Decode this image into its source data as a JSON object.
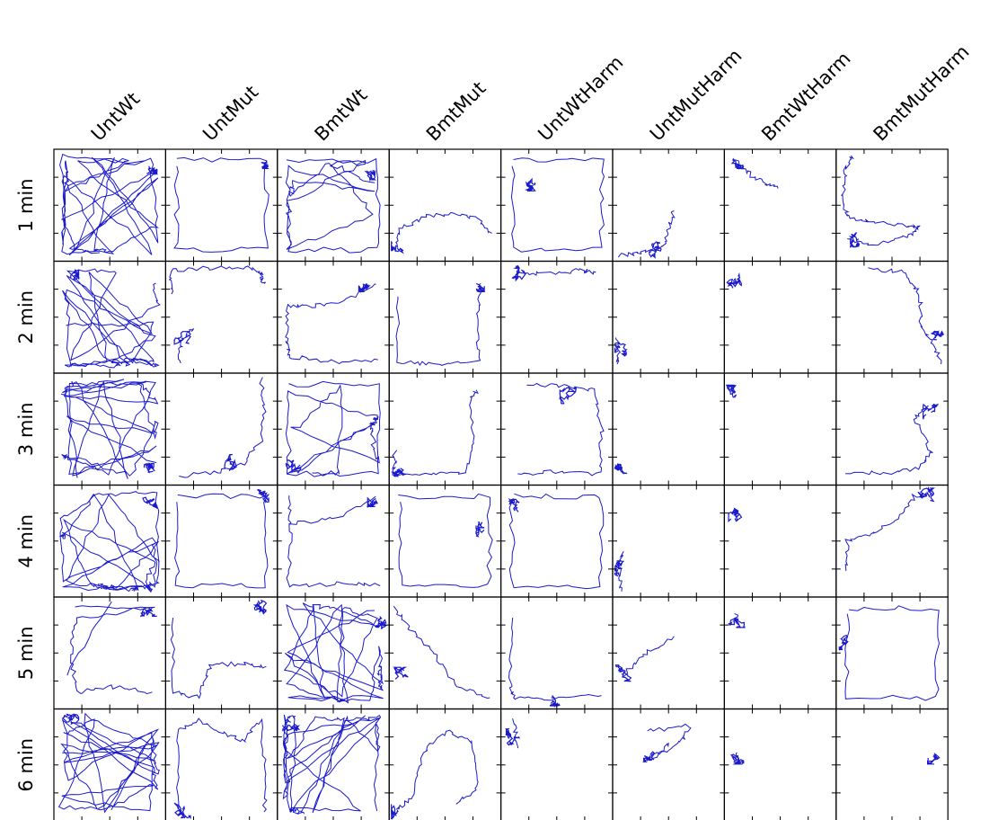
{
  "chart_data": {
    "type": "trajectory-grid",
    "columns": [
      "UntWt",
      "UntMut",
      "BmtWt",
      "BmtMut",
      "UntWtHarm",
      "UntMutHarm",
      "BmtWtHarm",
      "BmtMutHarm"
    ],
    "rows": [
      "1 min",
      "2 min",
      "3 min",
      "4 min",
      "5 min",
      "6 min"
    ],
    "trajectory_color": "#1a1acc",
    "frame_color": "#000000",
    "panels": [
      [
        {
          "pattern": "dense",
          "scatter": 0.48,
          "cluster": [
            0.85,
            0.15
          ]
        },
        {
          "pattern": "perimeter",
          "scatter": 0.12,
          "cluster": [
            0.9,
            0.1
          ]
        },
        {
          "pattern": "mixed",
          "scatter": 0.3,
          "cluster": [
            0.8,
            0.2
          ]
        },
        {
          "pattern": "path",
          "points": [
            [
              0.05,
              0.9
            ],
            [
              0.1,
              0.7
            ],
            [
              0.35,
              0.6
            ],
            [
              0.6,
              0.58
            ],
            [
              0.8,
              0.62
            ],
            [
              0.92,
              0.75
            ]
          ],
          "cluster": [
            0.07,
            0.88
          ]
        },
        {
          "pattern": "perimeter",
          "scatter": 0.1,
          "cluster": [
            0.3,
            0.3
          ]
        },
        {
          "pattern": "path",
          "points": [
            [
              0.05,
              0.95
            ],
            [
              0.25,
              0.92
            ],
            [
              0.45,
              0.88
            ],
            [
              0.5,
              0.7
            ],
            [
              0.55,
              0.55
            ]
          ],
          "cluster": [
            0.4,
            0.9
          ]
        },
        {
          "pattern": "path",
          "points": [
            [
              0.08,
              0.08
            ],
            [
              0.2,
              0.2
            ],
            [
              0.35,
              0.3
            ],
            [
              0.48,
              0.35
            ]
          ],
          "cluster": [
            0.1,
            0.1
          ]
        },
        {
          "pattern": "path",
          "points": [
            [
              0.15,
              0.05
            ],
            [
              0.08,
              0.2
            ],
            [
              0.06,
              0.4
            ],
            [
              0.1,
              0.6
            ],
            [
              0.3,
              0.65
            ],
            [
              0.6,
              0.68
            ],
            [
              0.75,
              0.7
            ],
            [
              0.6,
              0.8
            ],
            [
              0.3,
              0.85
            ],
            [
              0.1,
              0.8
            ]
          ],
          "cluster": [
            0.2,
            0.8
          ]
        }
      ],
      [
        {
          "pattern": "dense",
          "scatter": 0.55,
          "cluster": [
            0.15,
            0.15
          ]
        },
        {
          "pattern": "path",
          "points": [
            [
              0.05,
              0.3
            ],
            [
              0.05,
              0.08
            ],
            [
              0.4,
              0.06
            ],
            [
              0.75,
              0.05
            ],
            [
              0.85,
              0.1
            ],
            [
              0.88,
              0.2
            ]
          ],
          "cluster": [
            0.15,
            0.7
          ],
          "extra": [
            [
              0.12,
              0.9
            ],
            [
              0.15,
              0.7
            ],
            [
              0.25,
              0.6
            ]
          ]
        },
        {
          "pattern": "path",
          "points": [
            [
              0.9,
              0.2
            ],
            [
              0.6,
              0.35
            ],
            [
              0.3,
              0.4
            ],
            [
              0.1,
              0.4
            ],
            [
              0.08,
              0.7
            ],
            [
              0.1,
              0.85
            ],
            [
              0.5,
              0.9
            ],
            [
              0.9,
              0.88
            ]
          ],
          "cluster": [
            0.8,
            0.2
          ]
        },
        {
          "pattern": "path",
          "points": [
            [
              0.08,
              0.3
            ],
            [
              0.08,
              0.9
            ],
            [
              0.4,
              0.92
            ],
            [
              0.8,
              0.88
            ],
            [
              0.8,
              0.5
            ],
            [
              0.82,
              0.2
            ]
          ],
          "cluster": [
            0.78,
            0.2
          ]
        },
        {
          "pattern": "path",
          "points": [
            [
              0.15,
              0.1
            ],
            [
              0.4,
              0.12
            ],
            [
              0.7,
              0.08
            ],
            [
              0.85,
              0.1
            ]
          ],
          "cluster": [
            0.15,
            0.1
          ]
        },
        {
          "pattern": "path",
          "points": [
            [
              0.04,
              0.7
            ],
            [
              0.05,
              0.8
            ],
            [
              0.04,
              0.92
            ]
          ],
          "cluster": [
            0.05,
            0.8
          ]
        },
        {
          "pattern": "path",
          "points": [
            [
              0.08,
              0.18
            ],
            [
              0.09,
              0.2
            ]
          ],
          "cluster": [
            0.08,
            0.18
          ]
        },
        {
          "pattern": "path",
          "points": [
            [
              0.3,
              0.06
            ],
            [
              0.6,
              0.1
            ],
            [
              0.75,
              0.3
            ],
            [
              0.76,
              0.6
            ],
            [
              0.88,
              0.75
            ],
            [
              0.94,
              0.92
            ]
          ],
          "cluster": [
            0.9,
            0.7
          ]
        }
      ],
      [
        {
          "pattern": "dense",
          "scatter": 0.4,
          "cluster": [
            0.88,
            0.88
          ]
        },
        {
          "pattern": "path",
          "points": [
            [
              0.85,
              0.05
            ],
            [
              0.88,
              0.3
            ],
            [
              0.86,
              0.6
            ],
            [
              0.7,
              0.8
            ],
            [
              0.5,
              0.88
            ],
            [
              0.12,
              0.92
            ]
          ],
          "cluster": [
            0.6,
            0.8
          ]
        },
        {
          "pattern": "mixed",
          "scatter": 0.3,
          "cluster": [
            0.15,
            0.85
          ]
        },
        {
          "pattern": "path",
          "points": [
            [
              0.05,
              0.7
            ],
            [
              0.05,
              0.9
            ],
            [
              0.4,
              0.9
            ],
            [
              0.7,
              0.88
            ],
            [
              0.75,
              0.6
            ],
            [
              0.72,
              0.25
            ],
            [
              0.78,
              0.15
            ]
          ],
          "cluster": [
            0.1,
            0.85
          ]
        },
        {
          "pattern": "path",
          "points": [
            [
              0.25,
              0.1
            ],
            [
              0.6,
              0.12
            ],
            [
              0.85,
              0.15
            ],
            [
              0.9,
              0.5
            ],
            [
              0.88,
              0.9
            ],
            [
              0.5,
              0.88
            ],
            [
              0.15,
              0.9
            ]
          ],
          "cluster": [
            0.6,
            0.2
          ]
        },
        {
          "pattern": "path",
          "points": [
            [
              0.05,
              0.82
            ],
            [
              0.08,
              0.85
            ]
          ],
          "cluster": [
            0.06,
            0.84
          ]
        },
        {
          "pattern": "path",
          "points": [
            [
              0.08,
              0.15
            ],
            [
              0.09,
              0.22
            ]
          ],
          "cluster": [
            0.08,
            0.18
          ]
        },
        {
          "pattern": "path",
          "points": [
            [
              0.1,
              0.88
            ],
            [
              0.4,
              0.9
            ],
            [
              0.75,
              0.85
            ],
            [
              0.85,
              0.7
            ],
            [
              0.7,
              0.4
            ],
            [
              0.82,
              0.3
            ]
          ],
          "cluster": [
            0.85,
            0.35
          ]
        }
      ],
      [
        {
          "pattern": "dense",
          "scatter": 0.5,
          "cluster": [
            0.85,
            0.15
          ]
        },
        {
          "pattern": "perimeter",
          "scatter": 0.08,
          "cluster": [
            0.85,
            0.08
          ]
        },
        {
          "pattern": "path",
          "points": [
            [
              0.1,
              0.1
            ],
            [
              0.12,
              0.4
            ],
            [
              0.1,
              0.9
            ],
            [
              0.6,
              0.88
            ],
            [
              0.92,
              0.9
            ]
          ],
          "extra": [
            [
              0.12,
              0.35
            ],
            [
              0.5,
              0.3
            ],
            [
              0.88,
              0.1
            ]
          ],
          "cluster": [
            0.88,
            0.12
          ]
        },
        {
          "pattern": "perimeter",
          "scatter": 0.1,
          "cluster": [
            0.85,
            0.4
          ]
        },
        {
          "pattern": "perimeter",
          "scatter": 0.1,
          "cluster": [
            0.15,
            0.2
          ]
        },
        {
          "pattern": "path",
          "points": [
            [
              0.08,
              0.6
            ],
            [
              0.06,
              0.8
            ],
            [
              0.08,
              0.95
            ]
          ],
          "cluster": [
            0.08,
            0.75
          ]
        },
        {
          "pattern": "path",
          "points": [
            [
              0.1,
              0.22
            ],
            [
              0.12,
              0.28
            ]
          ],
          "cluster": [
            0.11,
            0.25
          ]
        },
        {
          "pattern": "path",
          "points": [
            [
              0.08,
              0.75
            ],
            [
              0.1,
              0.5
            ],
            [
              0.3,
              0.45
            ],
            [
              0.55,
              0.3
            ],
            [
              0.7,
              0.1
            ],
            [
              0.85,
              0.08
            ]
          ],
          "cluster": [
            0.8,
            0.1
          ]
        }
      ],
      [
        {
          "pattern": "path",
          "points": [
            [
              0.2,
              0.1
            ],
            [
              0.9,
              0.08
            ],
            [
              0.2,
              0.2
            ],
            [
              0.15,
              0.5
            ],
            [
              0.2,
              0.85
            ],
            [
              0.5,
              0.8
            ],
            [
              0.88,
              0.85
            ]
          ],
          "extra": [
            [
              0.5,
              0.05
            ],
            [
              0.12,
              0.7
            ]
          ],
          "cluster": [
            0.85,
            0.1
          ]
        },
        {
          "pattern": "path",
          "points": [
            [
              0.05,
              0.2
            ],
            [
              0.08,
              0.85
            ],
            [
              0.3,
              0.9
            ],
            [
              0.4,
              0.6
            ],
            [
              0.7,
              0.6
            ],
            [
              0.9,
              0.62
            ]
          ],
          "extra": [
            [
              0.82,
              0.05
            ],
            [
              0.85,
              0.12
            ]
          ],
          "cluster": [
            0.85,
            0.08
          ]
        },
        {
          "pattern": "dense",
          "scatter": 0.4,
          "cluster": [
            0.9,
            0.25
          ]
        },
        {
          "pattern": "path",
          "points": [
            [
              0.05,
              0.1
            ],
            [
              0.2,
              0.3
            ],
            [
              0.4,
              0.5
            ],
            [
              0.6,
              0.8
            ],
            [
              0.9,
              0.9
            ]
          ],
          "cluster": [
            0.12,
            0.7
          ]
        },
        {
          "pattern": "path",
          "points": [
            [
              0.1,
              0.2
            ],
            [
              0.08,
              0.8
            ],
            [
              0.12,
              0.9
            ],
            [
              0.4,
              0.92
            ],
            [
              0.9,
              0.88
            ]
          ],
          "cluster": [
            0.45,
            0.9
          ]
        },
        {
          "pattern": "path",
          "points": [
            [
              0.1,
              0.7
            ],
            [
              0.3,
              0.5
            ],
            [
              0.55,
              0.35
            ]
          ],
          "cluster": [
            0.1,
            0.68
          ]
        },
        {
          "pattern": "path",
          "points": [
            [
              0.1,
              0.15
            ],
            [
              0.12,
              0.25
            ]
          ],
          "cluster": [
            0.11,
            0.2
          ]
        },
        {
          "pattern": "perimeter",
          "scatter": 0.1,
          "cluster": [
            0.1,
            0.4
          ]
        }
      ],
      [
        {
          "pattern": "dense",
          "scatter": 0.48,
          "cluster": [
            0.15,
            0.12
          ]
        },
        {
          "pattern": "path",
          "points": [
            [
              0.1,
              0.9
            ],
            [
              0.12,
              0.2
            ],
            [
              0.3,
              0.1
            ],
            [
              0.5,
              0.2
            ],
            [
              0.7,
              0.3
            ],
            [
              0.85,
              0.1
            ],
            [
              0.9,
              0.6
            ],
            [
              0.88,
              0.92
            ]
          ],
          "cluster": [
            0.15,
            0.9
          ]
        },
        {
          "pattern": "dense",
          "scatter": 0.3,
          "cluster": [
            0.12,
            0.12
          ]
        },
        {
          "pattern": "path",
          "points": [
            [
              0.05,
              0.9
            ],
            [
              0.2,
              0.8
            ],
            [
              0.3,
              0.4
            ],
            [
              0.5,
              0.2
            ],
            [
              0.75,
              0.3
            ],
            [
              0.8,
              0.7
            ],
            [
              0.6,
              0.85
            ]
          ],
          "cluster": [
            0.08,
            0.92
          ]
        },
        {
          "pattern": "path",
          "points": [
            [
              0.12,
              0.1
            ],
            [
              0.15,
              0.35
            ]
          ],
          "cluster": [
            0.12,
            0.25
          ]
        },
        {
          "pattern": "path",
          "points": [
            [
              0.3,
              0.2
            ],
            [
              0.7,
              0.15
            ],
            [
              0.6,
              0.3
            ],
            [
              0.35,
              0.45
            ],
            [
              0.5,
              0.3
            ]
          ],
          "cluster": [
            0.35,
            0.4
          ]
        },
        {
          "pattern": "path",
          "points": [
            [
              0.1,
              0.4
            ],
            [
              0.11,
              0.45
            ]
          ],
          "cluster": [
            0.1,
            0.42
          ]
        },
        {
          "pattern": "path",
          "points": [
            [
              0.88,
              0.4
            ],
            [
              0.9,
              0.45
            ]
          ],
          "cluster": [
            0.89,
            0.42
          ]
        }
      ]
    ]
  }
}
